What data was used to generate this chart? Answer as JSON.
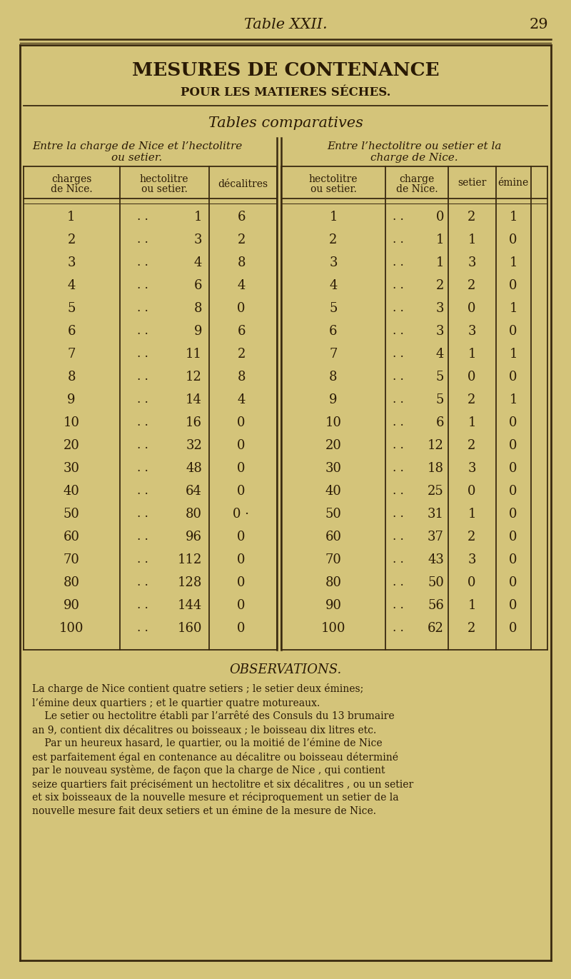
{
  "bg_color": "#d4c47a",
  "page_bg": "#c8b860",
  "border_color": "#3a2a10",
  "text_color": "#2a1a05",
  "title_header": "Table XXII.",
  "page_num": "29",
  "main_title": "MESURES DE CONTENANCE",
  "subtitle": "POUR LES MATIERES SÉCHES.",
  "section_title": "Tables comparatives",
  "left_section_title1": "Entre la charge de Nice et l’hectolitre",
  "left_section_title2": "ou setier.",
  "right_section_title1": "Entre l’hectolitre ou setier et la",
  "right_section_title2": "charge de Nice.",
  "col_headers_left": [
    "charges\nde Nice.",
    "hectolitre\nou setier.",
    "décalitres"
  ],
  "col_headers_right": [
    "hectolitre\nou setier.",
    "charge\nde Nice.",
    "setier",
    "émine"
  ],
  "left_data": [
    [
      "1",
      "1",
      "6"
    ],
    [
      "2",
      "3",
      "2"
    ],
    [
      "3",
      "4",
      "8"
    ],
    [
      "4",
      "6",
      "4"
    ],
    [
      "5",
      "8",
      "0"
    ],
    [
      "6",
      "9",
      "6"
    ],
    [
      "7",
      "11",
      "2"
    ],
    [
      "8",
      "12",
      "8"
    ],
    [
      "9",
      "14",
      "4"
    ],
    [
      "10",
      "16",
      "0"
    ],
    [
      "20",
      "32",
      "0"
    ],
    [
      "30",
      "48",
      "0"
    ],
    [
      "40",
      "64",
      "0"
    ],
    [
      "50",
      "80",
      "0·"
    ],
    [
      "60",
      "96",
      "0"
    ],
    [
      "70",
      "112",
      "0"
    ],
    [
      "80",
      "128",
      "0"
    ],
    [
      "90",
      "144",
      "0"
    ],
    [
      "100",
      "160",
      "0"
    ]
  ],
  "right_data": [
    [
      "1",
      "0",
      "2",
      "1"
    ],
    [
      "2",
      "1",
      "1",
      "0"
    ],
    [
      "3",
      "1",
      "3",
      "1"
    ],
    [
      "4",
      "2",
      "2",
      "0"
    ],
    [
      "5",
      "3",
      "0",
      "1"
    ],
    [
      "6",
      "3",
      "3",
      "0"
    ],
    [
      "7",
      "4",
      "1",
      "1"
    ],
    [
      "8",
      "5",
      "0",
      "0"
    ],
    [
      "9",
      "5",
      "2",
      "1"
    ],
    [
      "10",
      "6",
      "1",
      "0"
    ],
    [
      "20",
      "12",
      "2",
      "0"
    ],
    [
      "30",
      "18",
      "3",
      "0"
    ],
    [
      "40",
      "25",
      "0",
      "0"
    ],
    [
      "50",
      "31",
      "1",
      "0"
    ],
    [
      "60",
      "37",
      "2",
      "0"
    ],
    [
      "70",
      "43",
      "3",
      "0"
    ],
    [
      "80",
      "50",
      "0",
      "0"
    ],
    [
      "90",
      "56",
      "1",
      "0"
    ],
    [
      "100",
      "62",
      "2",
      "0"
    ]
  ],
  "observations_title": "OBSERVATIONS.",
  "obs_lines": [
    "La charge de Nice contient quatre setiers ; le setier deux émines;",
    "l’émine deux quartiers ; et le quartier quatre motureaux.",
    "    Le setier ou hectolitre établi par l’arrêté des Consuls du 13 brumaire",
    "an 9, contient dix décalitres ou boisseaux ; le boisseau dix litres etc.",
    "    Par un heureux hasard, le quartier, ou la moitié de l’émine de Nice",
    "est parfaitement égal en contenance au décalitre ou boisseau déterminé",
    "par le nouveau système, de façon que la charge de Nice , qui contient",
    "seize quartiers fait précisément un hectolitre et six décalitres , ou un setier",
    "et six boisseaux de la nouvelle mesure et réciproquement un setier de la",
    "nouvelle mesure fait deux setiers et un émine de la mesure de Nice."
  ]
}
